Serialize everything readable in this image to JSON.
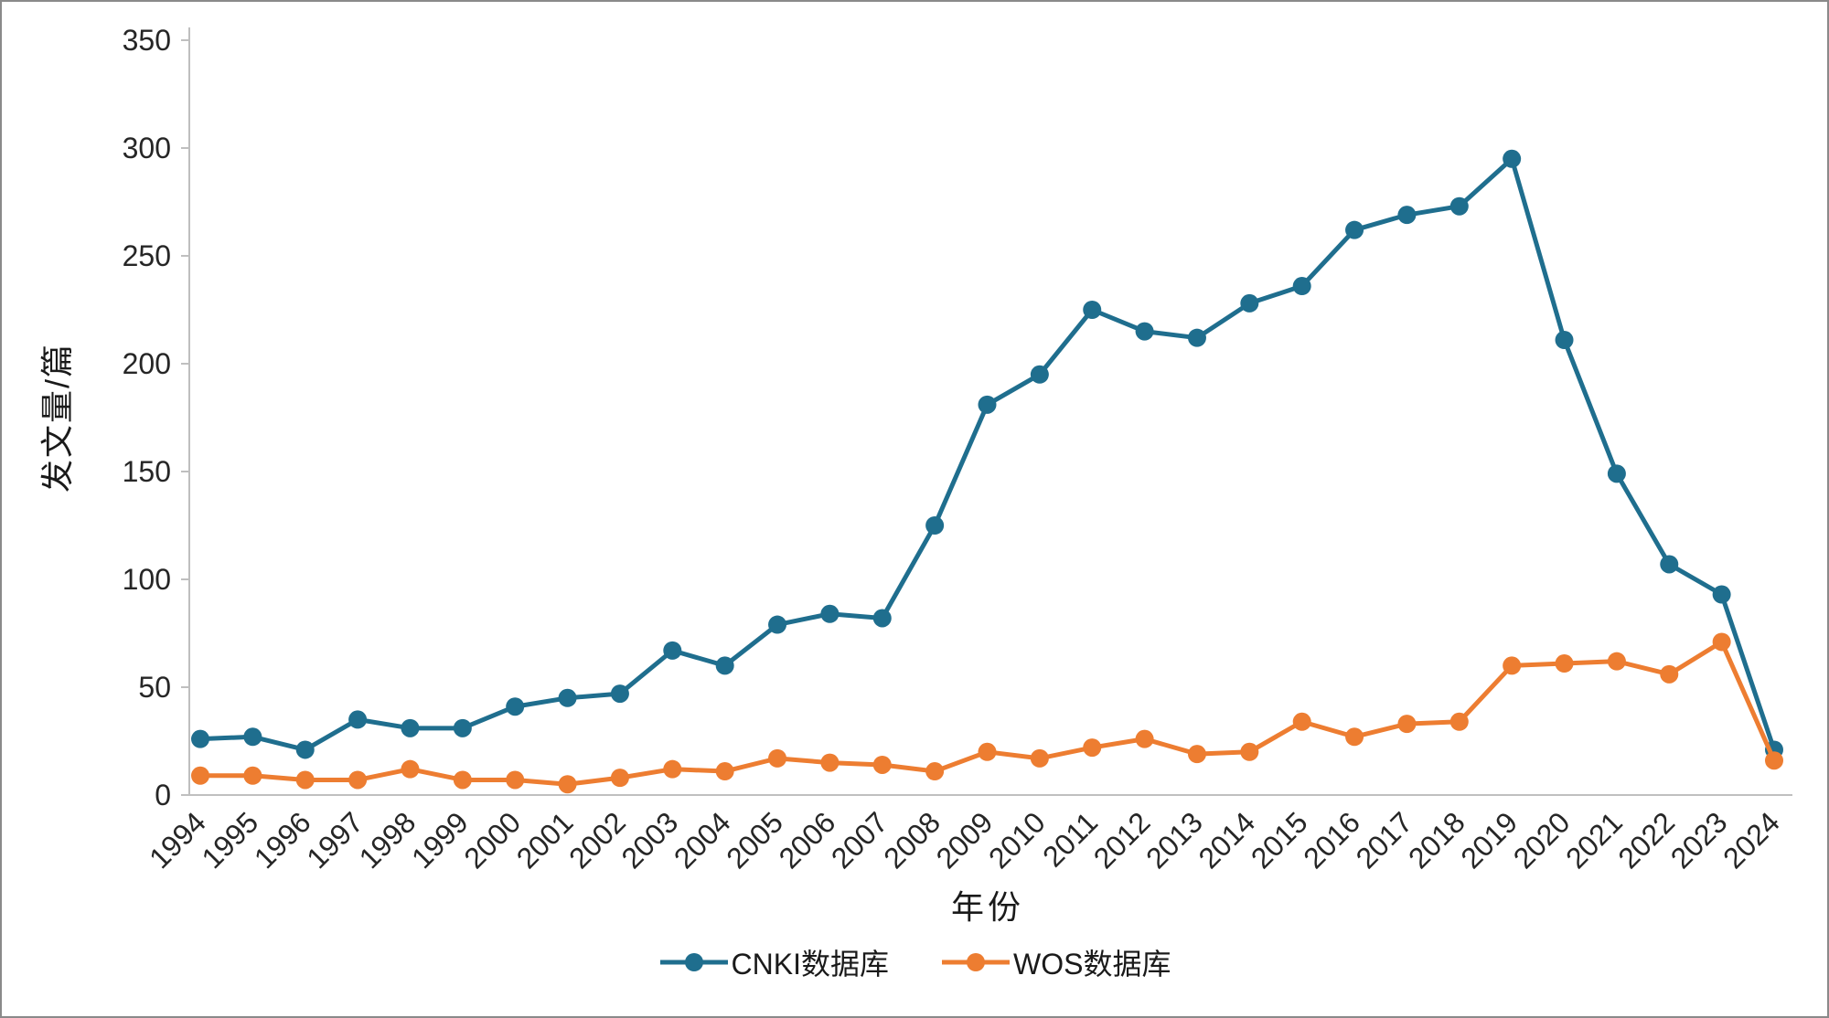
{
  "chart": {
    "y_axis_label": "发文量/篇",
    "x_axis_label": "年份",
    "colors": {
      "axis": "#bfbfbf",
      "tick_text": "#262626"
    }
  },
  "chart_data": {
    "type": "line",
    "title": "",
    "xlabel": "年份",
    "ylabel": "发文量/篇",
    "ylim": [
      0,
      350
    ],
    "y_ticks": [
      0,
      50,
      100,
      150,
      200,
      250,
      300,
      350
    ],
    "grid": false,
    "legend_position": "bottom",
    "categories": [
      "1994",
      "1995",
      "1996",
      "1997",
      "1998",
      "1999",
      "2000",
      "2001",
      "2002",
      "2003",
      "2004",
      "2005",
      "2006",
      "2007",
      "2008",
      "2009",
      "2010",
      "2011",
      "2012",
      "2013",
      "2014",
      "2015",
      "2016",
      "2017",
      "2018",
      "2019",
      "2020",
      "2021",
      "2022",
      "2023",
      "2024"
    ],
    "series": [
      {
        "name": "CNKI数据库",
        "color": "#1f6e8e",
        "values": [
          26,
          27,
          21,
          35,
          31,
          31,
          41,
          45,
          47,
          67,
          60,
          79,
          84,
          82,
          125,
          181,
          195,
          225,
          215,
          212,
          228,
          236,
          262,
          269,
          273,
          295,
          211,
          149,
          107,
          93,
          21
        ]
      },
      {
        "name": "WOS数据库",
        "color": "#ed7d31",
        "values": [
          9,
          9,
          7,
          7,
          12,
          7,
          7,
          5,
          8,
          12,
          11,
          17,
          15,
          14,
          11,
          20,
          17,
          22,
          26,
          19,
          20,
          34,
          27,
          33,
          34,
          60,
          61,
          62,
          56,
          71,
          16
        ]
      }
    ]
  }
}
